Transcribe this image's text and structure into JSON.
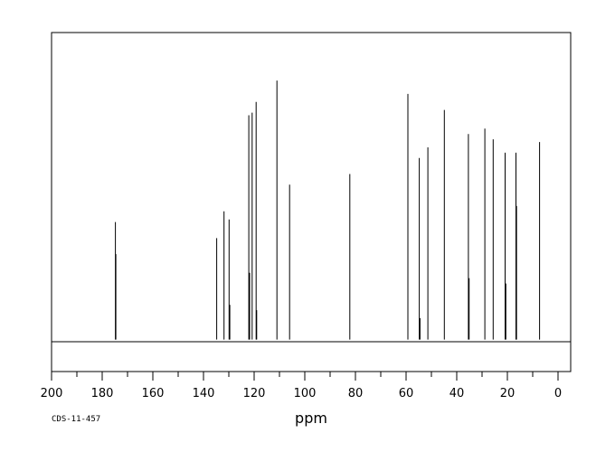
{
  "chart_data": {
    "type": "line",
    "xlabel": "ppm",
    "ylabel": "",
    "xlim": [
      200,
      -5
    ],
    "x_reversed": true,
    "ylim": [
      -0.12,
      1.15
    ],
    "grid": false,
    "x_tick_values": [
      200,
      180,
      160,
      140,
      120,
      100,
      80,
      60,
      40,
      20,
      0
    ],
    "x_tick_labels": [
      "200",
      "180",
      "160",
      "140",
      "120",
      "100",
      "80",
      "60",
      "40",
      "20",
      "0"
    ],
    "series": [
      {
        "peaks": [
          {
            "ppm": 174.8,
            "intensity": 0.44
          },
          {
            "ppm": 174.6,
            "intensity": 0.32
          },
          {
            "ppm": 134.8,
            "intensity": 0.38
          },
          {
            "ppm": 131.9,
            "intensity": 0.48
          },
          {
            "ppm": 129.9,
            "intensity": 0.45
          },
          {
            "ppm": 129.6,
            "intensity": 0.13
          },
          {
            "ppm": 122.1,
            "intensity": 0.84
          },
          {
            "ppm": 121.8,
            "intensity": 0.25
          },
          {
            "ppm": 120.8,
            "intensity": 0.85
          },
          {
            "ppm": 119.2,
            "intensity": 0.89
          },
          {
            "ppm": 119.0,
            "intensity": 0.11
          },
          {
            "ppm": 111.0,
            "intensity": 0.97
          },
          {
            "ppm": 106.0,
            "intensity": 0.58
          },
          {
            "ppm": 82.2,
            "intensity": 0.62
          },
          {
            "ppm": 59.3,
            "intensity": 0.92
          },
          {
            "ppm": 54.8,
            "intensity": 0.68
          },
          {
            "ppm": 54.5,
            "intensity": 0.08
          },
          {
            "ppm": 51.4,
            "intensity": 0.72
          },
          {
            "ppm": 44.9,
            "intensity": 0.86
          },
          {
            "ppm": 35.4,
            "intensity": 0.77
          },
          {
            "ppm": 35.1,
            "intensity": 0.23
          },
          {
            "ppm": 28.9,
            "intensity": 0.79
          },
          {
            "ppm": 25.6,
            "intensity": 0.75
          },
          {
            "ppm": 20.9,
            "intensity": 0.7
          },
          {
            "ppm": 20.6,
            "intensity": 0.21
          },
          {
            "ppm": 16.6,
            "intensity": 0.7
          },
          {
            "ppm": 16.4,
            "intensity": 0.5
          },
          {
            "ppm": 7.3,
            "intensity": 0.74
          }
        ]
      }
    ],
    "footer_code": "CDS-11-457"
  }
}
